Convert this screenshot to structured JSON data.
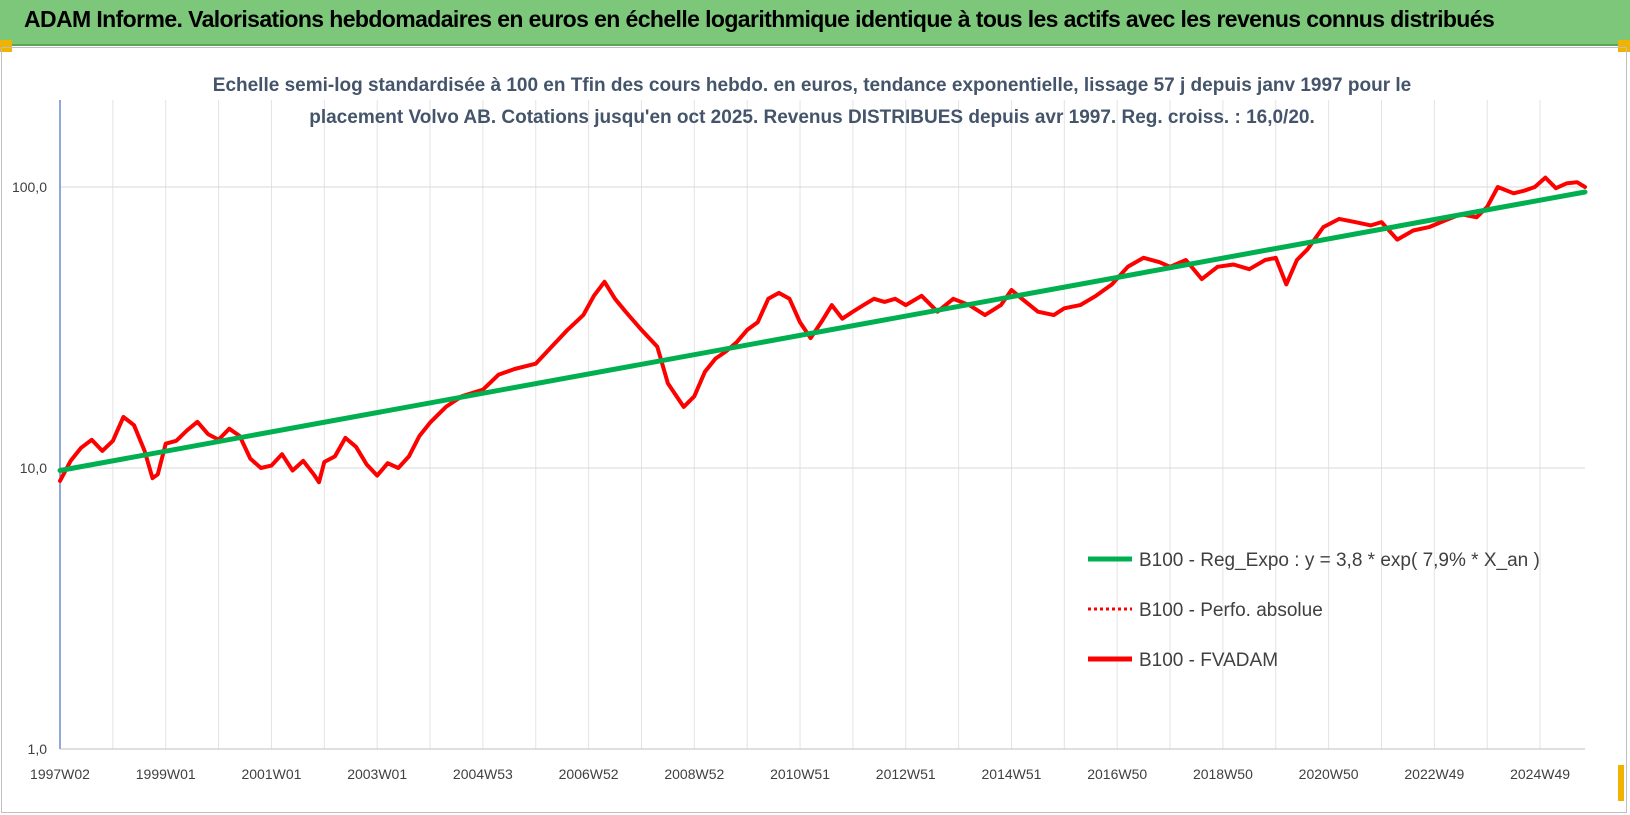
{
  "header": {
    "title": "ADAM Informe. Valorisations hebdomadaires en euros en échelle logarithmique identique à tous les actifs avec les revenus connus distribués"
  },
  "chart_data": {
    "type": "line",
    "title_lines": [
      "Echelle semi-log standardisée à 100 en Tfin des cours hebdo. en euros, tendance exponentielle, lissage 57 j depuis janv 1997 pour le",
      "placement Volvo AB. Cotations jusqu'en oct 2025. Revenus DISTRIBUES depuis avr 1997. Reg. croiss. : 16,0/20."
    ],
    "y_scale": "log",
    "ylim": [
      1,
      200
    ],
    "y_ticks": [
      {
        "value": 1,
        "label": "1,0"
      },
      {
        "value": 10,
        "label": "10,0"
      },
      {
        "value": 100,
        "label": "100,0"
      }
    ],
    "xlim": [
      1997.0,
      2025.85
    ],
    "x_ticks": [
      {
        "value": 1997.0,
        "label": "1997W02"
      },
      {
        "value": 1999.0,
        "label": "1999W01"
      },
      {
        "value": 2001.0,
        "label": "2001W01"
      },
      {
        "value": 2003.0,
        "label": "2003W01"
      },
      {
        "value": 2005.0,
        "label": "2004W53"
      },
      {
        "value": 2007.0,
        "label": "2006W52"
      },
      {
        "value": 2009.0,
        "label": "2008W52"
      },
      {
        "value": 2011.0,
        "label": "2010W51"
      },
      {
        "value": 2013.0,
        "label": "2012W51"
      },
      {
        "value": 2015.0,
        "label": "2014W51"
      },
      {
        "value": 2017.0,
        "label": "2016W50"
      },
      {
        "value": 2019.0,
        "label": "2018W50"
      },
      {
        "value": 2021.0,
        "label": "2020W50"
      },
      {
        "value": 2023.0,
        "label": "2022W49"
      },
      {
        "value": 2025.0,
        "label": "2024W49"
      }
    ],
    "grid": true,
    "legend_position": "bottom-right",
    "series": [
      {
        "name": "B100 - Reg_Expo : y = 3,8 * exp( 7,9% *  X_an )",
        "color": "#00b050",
        "style": "solid",
        "x": [
          1997.0,
          2025.85
        ],
        "y": [
          9.8,
          96
        ]
      },
      {
        "name": "B100 - Perfo. absolue",
        "color": "#ff0000",
        "style": "dotted",
        "x": [],
        "y": []
      },
      {
        "name": "B100 - FVADAM",
        "color": "#ff0000",
        "style": "solid",
        "x": [
          1997.0,
          1997.2,
          1997.4,
          1997.6,
          1997.8,
          1998.0,
          1998.2,
          1998.4,
          1998.6,
          1998.75,
          1998.85,
          1999.0,
          1999.2,
          1999.4,
          1999.6,
          1999.8,
          2000.0,
          2000.2,
          2000.4,
          2000.6,
          2000.8,
          2001.0,
          2001.2,
          2001.4,
          2001.6,
          2001.8,
          2001.9,
          2002.0,
          2002.2,
          2002.4,
          2002.6,
          2002.8,
          2003.0,
          2003.2,
          2003.4,
          2003.6,
          2003.8,
          2004.0,
          2004.3,
          2004.6,
          2005.0,
          2005.3,
          2005.6,
          2006.0,
          2006.3,
          2006.6,
          2006.9,
          2007.1,
          2007.3,
          2007.5,
          2007.7,
          2008.0,
          2008.3,
          2008.5,
          2008.8,
          2009.0,
          2009.2,
          2009.4,
          2009.6,
          2009.8,
          2010.0,
          2010.2,
          2010.4,
          2010.6,
          2010.8,
          2011.0,
          2011.2,
          2011.4,
          2011.6,
          2011.8,
          2012.0,
          2012.2,
          2012.4,
          2012.6,
          2012.8,
          2013.0,
          2013.3,
          2013.6,
          2013.9,
          2014.2,
          2014.5,
          2014.8,
          2015.0,
          2015.2,
          2015.5,
          2015.8,
          2016.0,
          2016.3,
          2016.6,
          2016.9,
          2017.2,
          2017.5,
          2017.8,
          2018.0,
          2018.3,
          2018.6,
          2018.9,
          2019.2,
          2019.5,
          2019.8,
          2020.0,
          2020.2,
          2020.4,
          2020.6,
          2020.9,
          2021.2,
          2021.5,
          2021.8,
          2022.0,
          2022.3,
          2022.6,
          2022.9,
          2023.2,
          2023.5,
          2023.8,
          2024.0,
          2024.2,
          2024.5,
          2024.7,
          2024.9,
          2025.1,
          2025.3,
          2025.5,
          2025.7,
          2025.85
        ],
        "y": [
          9.0,
          10.6,
          11.8,
          12.6,
          11.5,
          12.5,
          15.2,
          14.2,
          11.5,
          9.2,
          9.5,
          12.2,
          12.5,
          13.6,
          14.6,
          13.2,
          12.6,
          13.8,
          13.0,
          10.8,
          10.0,
          10.2,
          11.2,
          9.8,
          10.6,
          9.5,
          8.9,
          10.5,
          11.0,
          12.8,
          11.9,
          10.3,
          9.4,
          10.4,
          10.0,
          11.0,
          13.0,
          14.5,
          16.5,
          18.0,
          19.0,
          21.5,
          22.5,
          23.5,
          27.0,
          31.0,
          35.0,
          41.0,
          46.0,
          40.0,
          36.0,
          31.0,
          27.0,
          20.0,
          16.5,
          18.0,
          22.0,
          24.5,
          26.0,
          28.0,
          31.0,
          33.0,
          40.0,
          42.0,
          40.0,
          33.0,
          29.0,
          33.0,
          38.0,
          34.0,
          36.0,
          38.0,
          40.0,
          39.0,
          40.0,
          38.0,
          41.0,
          36.0,
          40.0,
          38.0,
          35.0,
          38.0,
          43.0,
          40.0,
          36.0,
          35.0,
          37.0,
          38.0,
          41.0,
          45.0,
          52.0,
          56.0,
          54.0,
          52.0,
          55.0,
          47.0,
          52.0,
          53.0,
          51.0,
          55.0,
          56.0,
          45.0,
          55.0,
          60.0,
          72.0,
          77.0,
          75.0,
          73.0,
          75.0,
          65.0,
          70.0,
          72.0,
          76.0,
          80.0,
          78.0,
          85.0,
          100.0,
          95.0,
          97.0,
          100.0,
          108.0,
          99.0,
          103.0,
          104.0,
          100.0
        ]
      }
    ]
  }
}
